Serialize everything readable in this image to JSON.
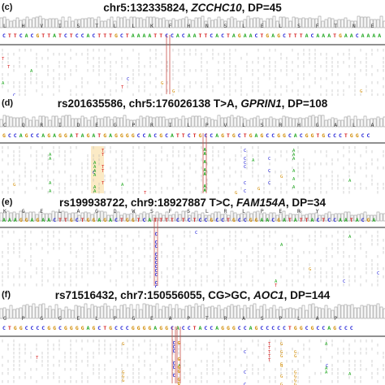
{
  "panels": [
    {
      "id": "c",
      "label": "(c)",
      "title_prefix": "chr5:132335824, ",
      "gene": "ZCCHC10",
      "title_suffix": ", DP=45",
      "aa_row": "L H V I S T L L K F H N S L E L S F T N E Q N",
      "dna_row": "CTTCACGTTATCTCCACTTTGCTAAAATTCCACAATTCACTAGAACTGAGCTTTACAAATGAACAAAAT"
    },
    {
      "id": "d",
      "label": "(d)",
      "title_prefix": "rs201635586, chr5:176026138 T>A, ",
      "gene": "GPRIN1",
      "title_suffix": ", DP=108",
      "aa_row": "C Q R I D E G P R I L P V L S R H G A L A R G",
      "dna_row": "GCCAGCCAGAGGATAGATGAGGGGCCACGCATTCTGCCAGTGCTGAGCCGGCACGGTGCCCTGGCC"
    },
    {
      "id": "e",
      "label": "(e)",
      "title_prefix": "rs199938722, chr9:18927887 T>C, ",
      "gene": "FAM154A",
      "title_suffix": ", DP=34",
      "aa_row": "K G E L A G D W S F S L R L P E R Y",
      "dna_row": "AAAGGAGAACTTGCTGGAGACTGGTCATTTTCTCTCCGCCTGCCGGAACGATATTACTCCAATACGA"
    },
    {
      "id": "f",
      "label": "(f)",
      "title_prefix": "rs71516432, chr7:150556055, CG>GC, ",
      "gene": "AOC1",
      "title_suffix": ", DP=144",
      "aa_row": "G P G G E L P G E A P T R A S P L A P",
      "dna_row": "CTGGCCCCGGCGGGGAGCTGCCCGGGGAGGCACCTACCAGGGCCAGCCCCCTGGCGCCAGCCC"
    }
  ],
  "colors": {
    "A": "#1aa51a",
    "C": "#2222d6",
    "G": "#d08a00",
    "T": "#d61f1f",
    "coverage": "#9a9a9a",
    "highlight": "#f4c35a",
    "marker": "#c8504a"
  }
}
